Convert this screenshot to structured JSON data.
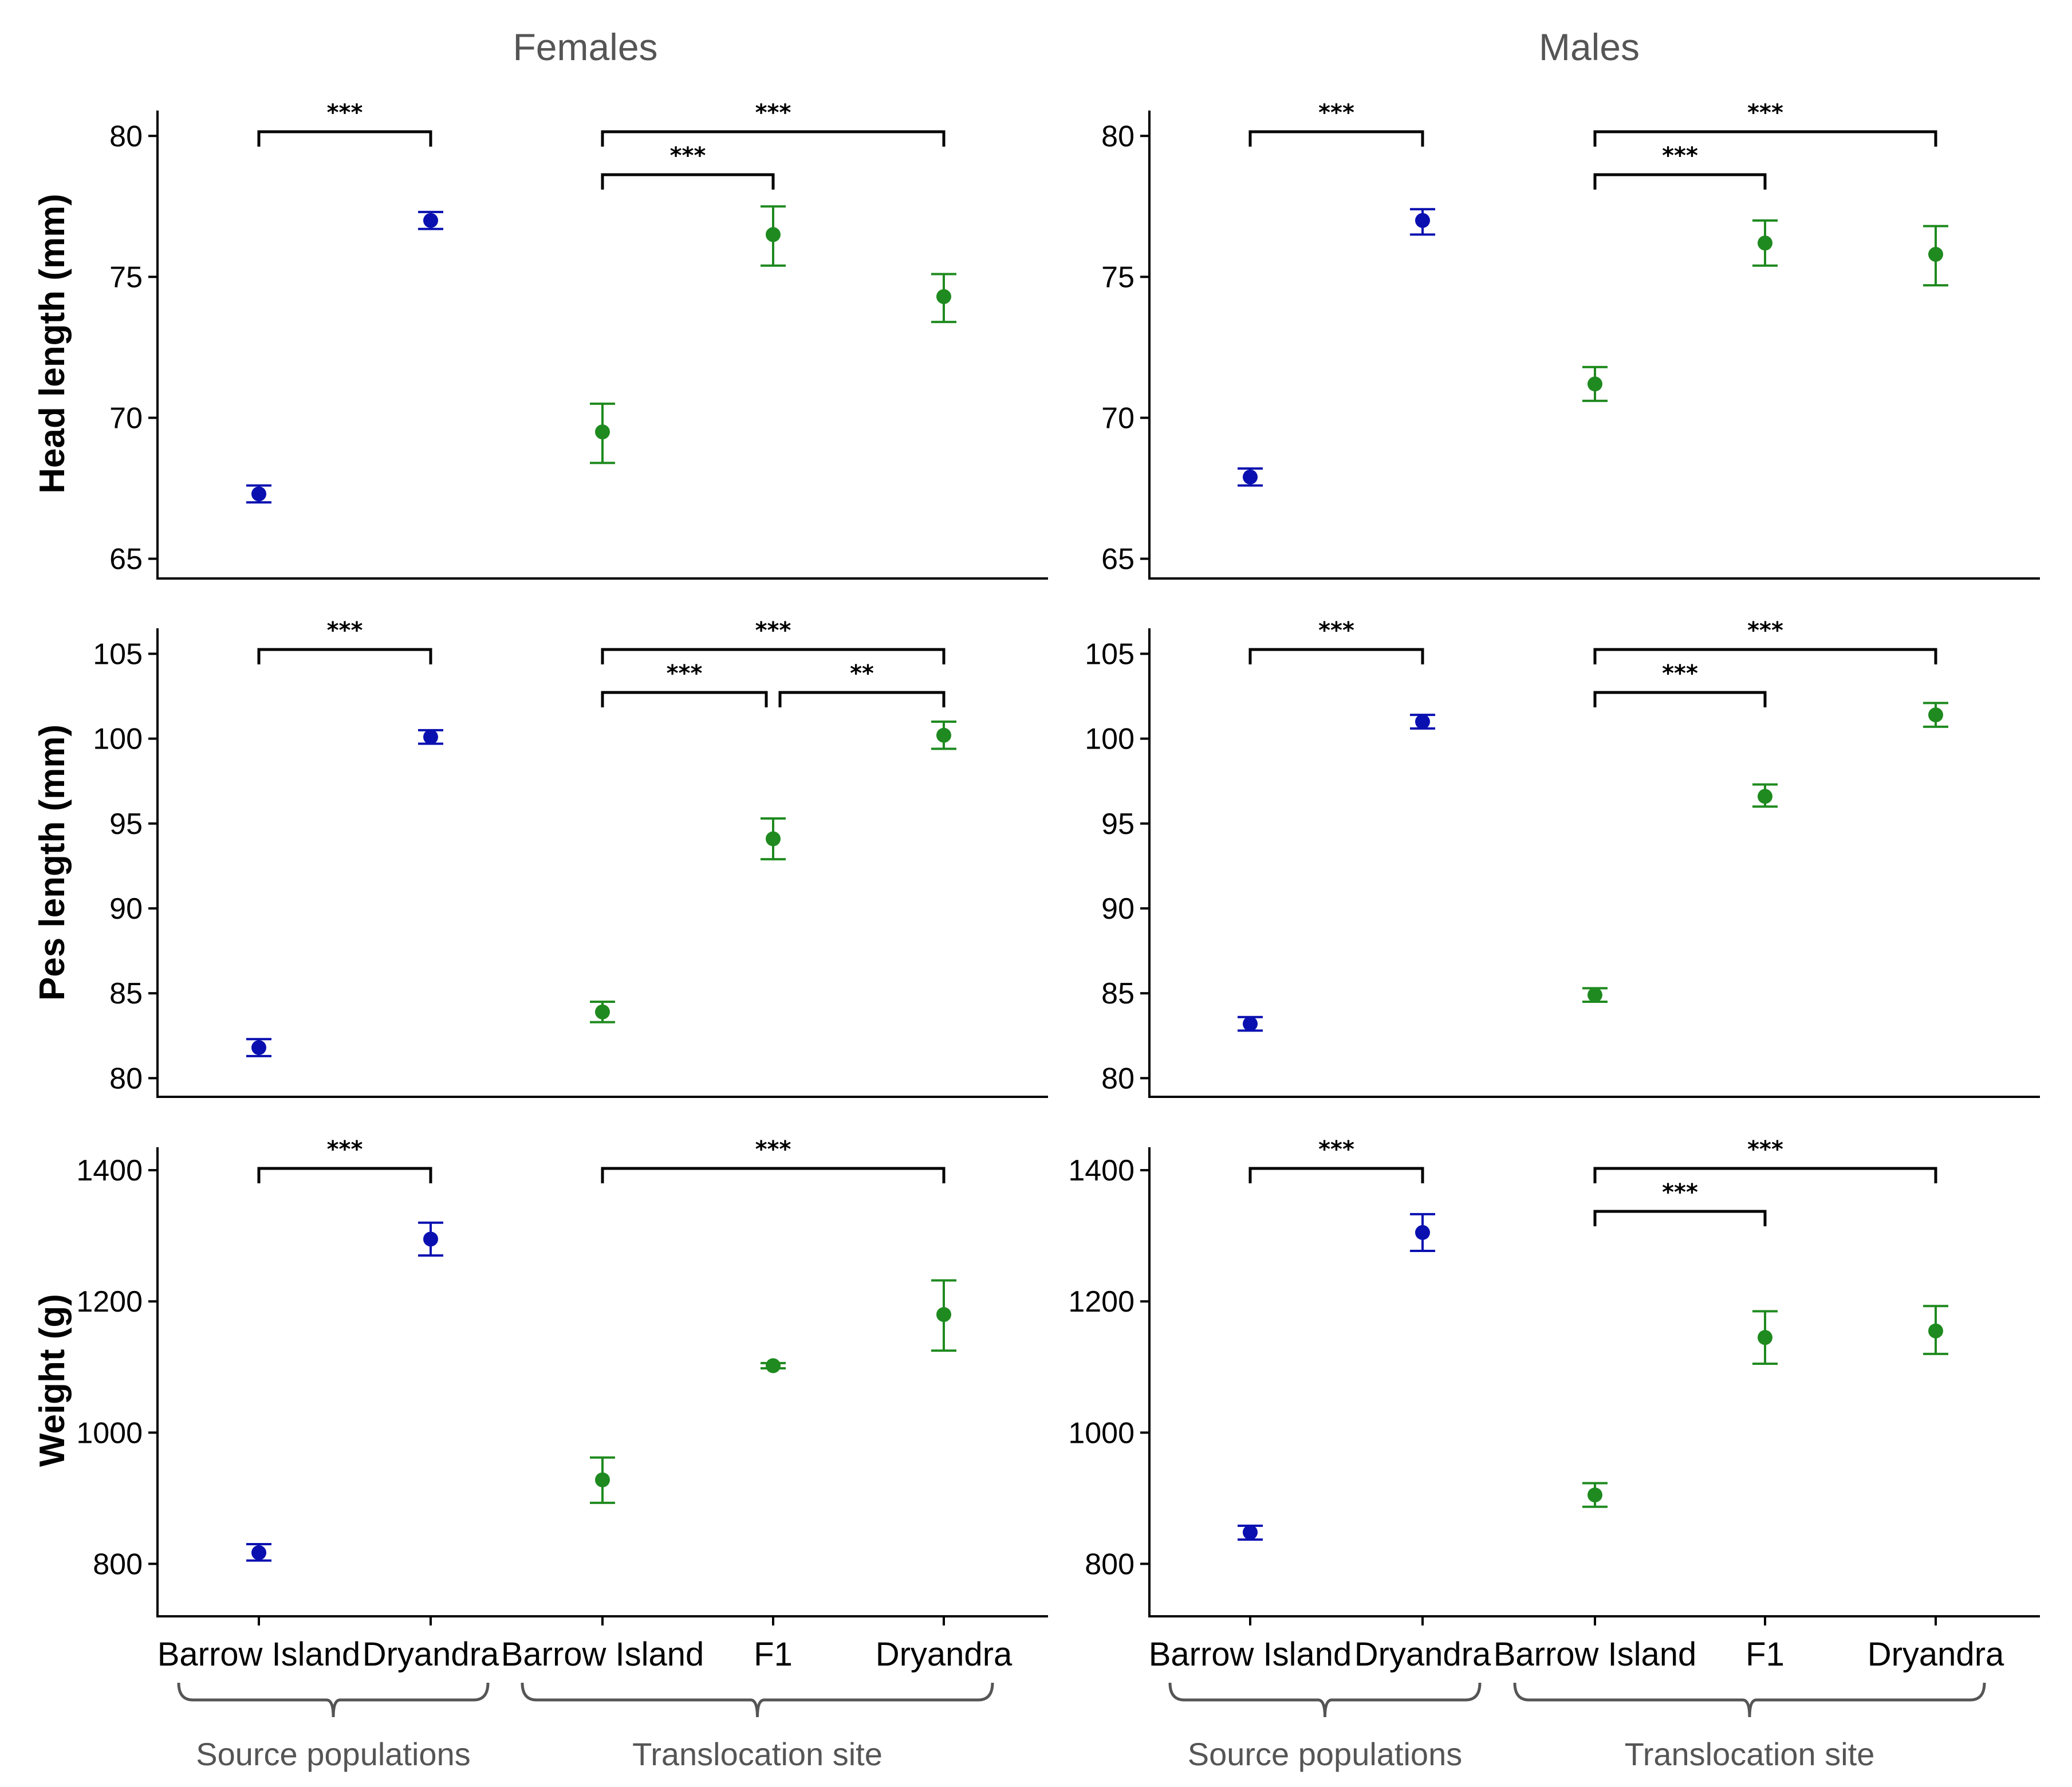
{
  "colors": {
    "source": "#0a10b0",
    "translocation": "#1f8a1f",
    "axis": "#000000",
    "group_label": "#555555"
  },
  "column_titles": [
    "Females",
    "Males"
  ],
  "x_categories": [
    "Barrow Island",
    "Dryandra",
    "Barrow Island",
    "F1",
    "Dryandra"
  ],
  "x_groups": [
    {
      "label": "Source populations",
      "span": [
        0,
        1
      ]
    },
    {
      "label": "Translocation site",
      "span": [
        2,
        4
      ]
    }
  ],
  "chart_data": [
    {
      "type": "scatter",
      "panel": "Females - Head length",
      "column": 0,
      "row": 0,
      "ylabel": "Head length (mm)",
      "ylim": [
        64.3,
        80.9
      ],
      "yticks": [
        65,
        70,
        75,
        80
      ],
      "categories": [
        "Barrow Island",
        "Dryandra",
        "Barrow Island",
        "F1",
        "Dryandra"
      ],
      "points": [
        {
          "category": 0,
          "group": "source",
          "mean": 67.3,
          "lo": 67.0,
          "hi": 67.6
        },
        {
          "category": 1,
          "group": "source",
          "mean": 77.0,
          "lo": 76.7,
          "hi": 77.3
        },
        {
          "category": 2,
          "group": "translocation",
          "mean": 69.5,
          "lo": 68.4,
          "hi": 70.5
        },
        {
          "category": 3,
          "group": "translocation",
          "mean": 76.5,
          "lo": 75.4,
          "hi": 77.5
        },
        {
          "category": 4,
          "group": "translocation",
          "mean": 74.3,
          "lo": 73.4,
          "hi": 75.1
        }
      ],
      "significance": [
        {
          "from": 0,
          "to": 1,
          "label": "***",
          "level": 0
        },
        {
          "from": 2,
          "to": 4,
          "label": "***",
          "level": 0
        },
        {
          "from": 2,
          "to": 3,
          "label": "***",
          "level": 1
        }
      ]
    },
    {
      "type": "scatter",
      "panel": "Males - Head length",
      "column": 1,
      "row": 0,
      "ylabel": "Head length (mm)",
      "ylim": [
        64.3,
        80.9
      ],
      "yticks": [
        65,
        70,
        75,
        80
      ],
      "categories": [
        "Barrow Island",
        "Dryandra",
        "Barrow Island",
        "F1",
        "Dryandra"
      ],
      "points": [
        {
          "category": 0,
          "group": "source",
          "mean": 67.9,
          "lo": 67.6,
          "hi": 68.2
        },
        {
          "category": 1,
          "group": "source",
          "mean": 77.0,
          "lo": 76.5,
          "hi": 77.4
        },
        {
          "category": 2,
          "group": "translocation",
          "mean": 71.2,
          "lo": 70.6,
          "hi": 71.8
        },
        {
          "category": 3,
          "group": "translocation",
          "mean": 76.2,
          "lo": 75.4,
          "hi": 77.0
        },
        {
          "category": 4,
          "group": "translocation",
          "mean": 75.8,
          "lo": 74.7,
          "hi": 76.8
        }
      ],
      "significance": [
        {
          "from": 0,
          "to": 1,
          "label": "***",
          "level": 0
        },
        {
          "from": 2,
          "to": 4,
          "label": "***",
          "level": 0
        },
        {
          "from": 2,
          "to": 3,
          "label": "***",
          "level": 1
        }
      ]
    },
    {
      "type": "scatter",
      "panel": "Females - Pes length",
      "column": 0,
      "row": 1,
      "ylabel": "Pes length (mm)",
      "ylim": [
        78.9,
        106.5
      ],
      "yticks": [
        80,
        85,
        90,
        95,
        100,
        105
      ],
      "categories": [
        "Barrow Island",
        "Dryandra",
        "Barrow Island",
        "F1",
        "Dryandra"
      ],
      "points": [
        {
          "category": 0,
          "group": "source",
          "mean": 81.8,
          "lo": 81.3,
          "hi": 82.3
        },
        {
          "category": 1,
          "group": "source",
          "mean": 100.1,
          "lo": 99.7,
          "hi": 100.5
        },
        {
          "category": 2,
          "group": "translocation",
          "mean": 83.9,
          "lo": 83.3,
          "hi": 84.5
        },
        {
          "category": 3,
          "group": "translocation",
          "mean": 94.1,
          "lo": 92.9,
          "hi": 95.3
        },
        {
          "category": 4,
          "group": "translocation",
          "mean": 100.2,
          "lo": 99.4,
          "hi": 101.0
        }
      ],
      "significance": [
        {
          "from": 0,
          "to": 1,
          "label": "***",
          "level": 0
        },
        {
          "from": 2,
          "to": 4,
          "label": "***",
          "level": 0
        },
        {
          "from": 2,
          "to": 3,
          "label": "***",
          "level": 1
        },
        {
          "from": 3,
          "to": 4,
          "label": "**",
          "level": 1
        }
      ]
    },
    {
      "type": "scatter",
      "panel": "Males - Pes length",
      "column": 1,
      "row": 1,
      "ylabel": "Pes length (mm)",
      "ylim": [
        78.9,
        106.5
      ],
      "yticks": [
        80,
        85,
        90,
        95,
        100,
        105
      ],
      "categories": [
        "Barrow Island",
        "Dryandra",
        "Barrow Island",
        "F1",
        "Dryandra"
      ],
      "points": [
        {
          "category": 0,
          "group": "source",
          "mean": 83.2,
          "lo": 82.8,
          "hi": 83.6
        },
        {
          "category": 1,
          "group": "source",
          "mean": 101.0,
          "lo": 100.6,
          "hi": 101.4
        },
        {
          "category": 2,
          "group": "translocation",
          "mean": 84.9,
          "lo": 84.5,
          "hi": 85.3
        },
        {
          "category": 3,
          "group": "translocation",
          "mean": 96.6,
          "lo": 96.0,
          "hi": 97.3
        },
        {
          "category": 4,
          "group": "translocation",
          "mean": 101.4,
          "lo": 100.7,
          "hi": 102.1
        }
      ],
      "significance": [
        {
          "from": 0,
          "to": 1,
          "label": "***",
          "level": 0
        },
        {
          "from": 2,
          "to": 4,
          "label": "***",
          "level": 0
        },
        {
          "from": 2,
          "to": 3,
          "label": "***",
          "level": 1
        }
      ]
    },
    {
      "type": "scatter",
      "panel": "Females - Weight",
      "column": 0,
      "row": 2,
      "ylabel": "Weight (g)",
      "ylim": [
        720,
        1435
      ],
      "yticks": [
        800,
        1000,
        1200,
        1400
      ],
      "categories": [
        "Barrow Island",
        "Dryandra",
        "Barrow Island",
        "F1",
        "Dryandra"
      ],
      "points": [
        {
          "category": 0,
          "group": "source",
          "mean": 817,
          "lo": 805,
          "hi": 830
        },
        {
          "category": 1,
          "group": "source",
          "mean": 1295,
          "lo": 1270,
          "hi": 1320
        },
        {
          "category": 2,
          "group": "translocation",
          "mean": 928,
          "lo": 893,
          "hi": 962
        },
        {
          "category": 3,
          "group": "translocation",
          "mean": 1102,
          "lo": 1098,
          "hi": 1106
        },
        {
          "category": 4,
          "group": "translocation",
          "mean": 1180,
          "lo": 1125,
          "hi": 1232
        }
      ],
      "significance": [
        {
          "from": 0,
          "to": 1,
          "label": "***",
          "level": 0
        },
        {
          "from": 2,
          "to": 4,
          "label": "***",
          "level": 0
        }
      ]
    },
    {
      "type": "scatter",
      "panel": "Males - Weight",
      "column": 1,
      "row": 2,
      "ylabel": "Weight (g)",
      "ylim": [
        720,
        1435
      ],
      "yticks": [
        800,
        1000,
        1200,
        1400
      ],
      "categories": [
        "Barrow Island",
        "Dryandra",
        "Barrow Island",
        "F1",
        "Dryandra"
      ],
      "points": [
        {
          "category": 0,
          "group": "source",
          "mean": 848,
          "lo": 837,
          "hi": 858
        },
        {
          "category": 1,
          "group": "source",
          "mean": 1305,
          "lo": 1277,
          "hi": 1333
        },
        {
          "category": 2,
          "group": "translocation",
          "mean": 905,
          "lo": 887,
          "hi": 923
        },
        {
          "category": 3,
          "group": "translocation",
          "mean": 1145,
          "lo": 1105,
          "hi": 1185
        },
        {
          "category": 4,
          "group": "translocation",
          "mean": 1155,
          "lo": 1120,
          "hi": 1193
        }
      ],
      "significance": [
        {
          "from": 0,
          "to": 1,
          "label": "***",
          "level": 0
        },
        {
          "from": 2,
          "to": 4,
          "label": "***",
          "level": 0
        },
        {
          "from": 2,
          "to": 3,
          "label": "***",
          "level": 1
        }
      ]
    }
  ]
}
